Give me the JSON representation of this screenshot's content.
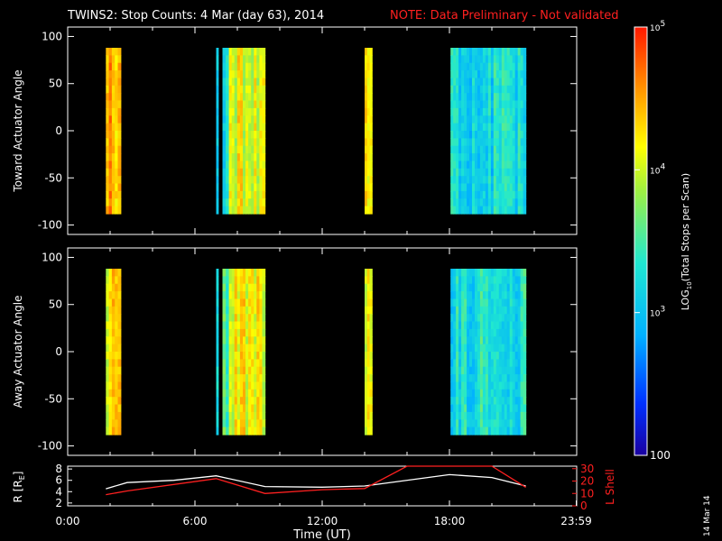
{
  "title": "TWINS2: Stop Counts:  4 Mar (day  63), 2014",
  "note": "NOTE: Data Preliminary - Not validated",
  "stamp": "14 Mar 14",
  "colors": {
    "background": "#000000",
    "axes": "#ffffff",
    "note": "#ff2020",
    "r_line": "#ffffff",
    "l_line": "#ff2020"
  },
  "chart_data": [
    {
      "type": "heatmap",
      "panel": "toward",
      "ylabel": "Toward Actuator Angle",
      "ylim": [
        -110,
        110
      ],
      "yticks": [
        100,
        50,
        0,
        -50,
        -100
      ],
      "xlim_hours": [
        0,
        24
      ],
      "scan_blocks": [
        {
          "start_h": 1.8,
          "end_h": 2.5,
          "level": 0.8
        },
        {
          "start_h": 7.0,
          "end_h": 7.1,
          "level": 0.45
        },
        {
          "start_h": 7.3,
          "end_h": 7.6,
          "level": 0.45
        },
        {
          "start_h": 7.6,
          "end_h": 9.3,
          "level": 0.7
        },
        {
          "start_h": 14.0,
          "end_h": 14.35,
          "level": 0.75
        },
        {
          "start_h": 18.05,
          "end_h": 21.6,
          "level": 0.4
        }
      ],
      "angle_range": [
        -88,
        88
      ]
    },
    {
      "type": "heatmap",
      "panel": "away",
      "ylabel": "Away Actuator Angle",
      "ylim": [
        -110,
        110
      ],
      "yticks": [
        100,
        50,
        0,
        -50,
        -100
      ],
      "xlim_hours": [
        0,
        24
      ],
      "scan_blocks": [
        {
          "start_h": 1.8,
          "end_h": 2.5,
          "level": 0.75
        },
        {
          "start_h": 7.0,
          "end_h": 7.1,
          "level": 0.45
        },
        {
          "start_h": 7.3,
          "end_h": 7.6,
          "level": 0.55
        },
        {
          "start_h": 7.6,
          "end_h": 9.3,
          "level": 0.72
        },
        {
          "start_h": 14.0,
          "end_h": 14.35,
          "level": 0.72
        },
        {
          "start_h": 18.05,
          "end_h": 21.6,
          "level": 0.42
        }
      ],
      "angle_range": [
        -88,
        88
      ]
    },
    {
      "type": "line",
      "panel": "ephemeris",
      "ylabel_left": "R [R",
      "ylabel_left_sub": "E",
      "ylabel_left_close": "]",
      "ylabel_right": "L Shell",
      "xlabel": "Time (UT)",
      "xticks": [
        "0:00",
        "6:00",
        "12:00",
        "18:00",
        "23:59"
      ],
      "xtick_hours": [
        0,
        6,
        12,
        18,
        23.98
      ],
      "yticks_left": [
        8,
        6,
        4,
        2
      ],
      "ylim_left": [
        1.5,
        8.5
      ],
      "yticks_right": [
        30,
        20,
        10,
        0
      ],
      "ylim_right": [
        0,
        32
      ],
      "series": [
        {
          "axis": "left",
          "x": [
            1.8,
            2.8,
            5.0,
            7.0,
            9.3,
            12.0,
            14.0,
            18.0,
            20.0,
            21.6
          ],
          "y": [
            4.5,
            5.6,
            6.0,
            6.8,
            4.9,
            4.8,
            5.0,
            7.0,
            6.5,
            5.0
          ]
        },
        {
          "axis": "right",
          "x": [
            1.8,
            2.8,
            7.0,
            9.3,
            12.0,
            14.0,
            16.0,
            20.0,
            21.6
          ],
          "y": [
            9,
            12,
            22,
            10,
            13,
            14,
            33,
            33,
            15
          ]
        }
      ]
    }
  ],
  "colorbar": {
    "label_log": "LOG",
    "label_sub": "10",
    "label_rest": "(Total Stops per Scan)",
    "ticks": [
      {
        "base": "10",
        "exp": "5",
        "value": 100000
      },
      {
        "base": "10",
        "exp": "4",
        "value": 10000
      },
      {
        "base": "10",
        "exp": "3",
        "value": 1000
      },
      {
        "base": "",
        "exp": "",
        "label": "100",
        "value": 100
      }
    ],
    "range": [
      100,
      100000
    ]
  }
}
